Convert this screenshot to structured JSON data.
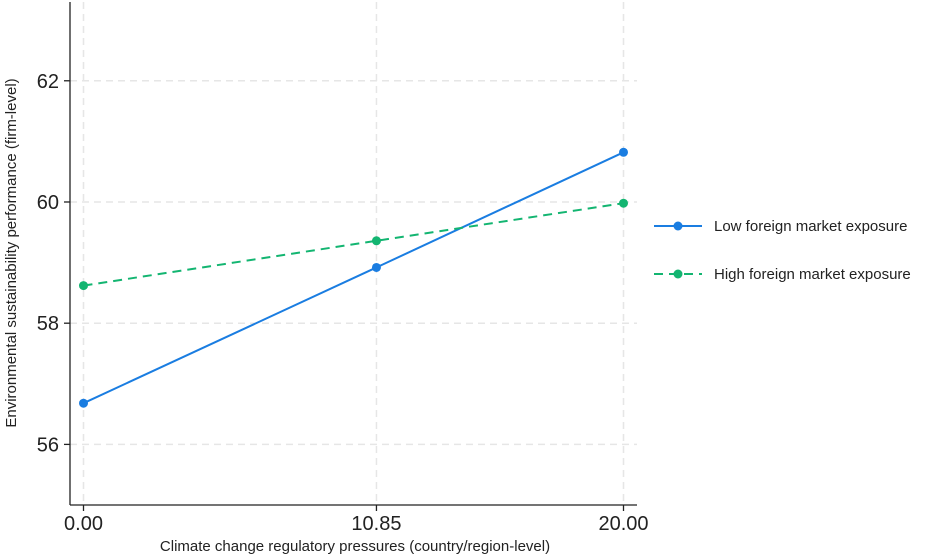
{
  "chart_data": {
    "type": "line",
    "xlabel": "Climate change regulatory pressures (country/region-level)",
    "ylabel": "Environmental sustainability performance (firm-level)",
    "x": [
      0,
      10.85,
      20
    ],
    "x_tick_labels": [
      "0.00",
      "10.85",
      "20.00"
    ],
    "xlim": [
      -0.5,
      20.5
    ],
    "ylim": [
      55.0,
      63.3
    ],
    "y_ticks": [
      56,
      58,
      60,
      62
    ],
    "y_tick_labels": [
      "56",
      "58",
      "60",
      "62"
    ],
    "grid": "dashed",
    "legend_position": "right",
    "series": [
      {
        "name": "Low foreign market exposure",
        "values": [
          56.68,
          58.92,
          60.82
        ],
        "color": "#1a7de1",
        "style": "solid"
      },
      {
        "name": "High foreign market exposure",
        "values": [
          58.62,
          59.36,
          59.98
        ],
        "color": "#13b571",
        "style": "dashed"
      }
    ]
  }
}
